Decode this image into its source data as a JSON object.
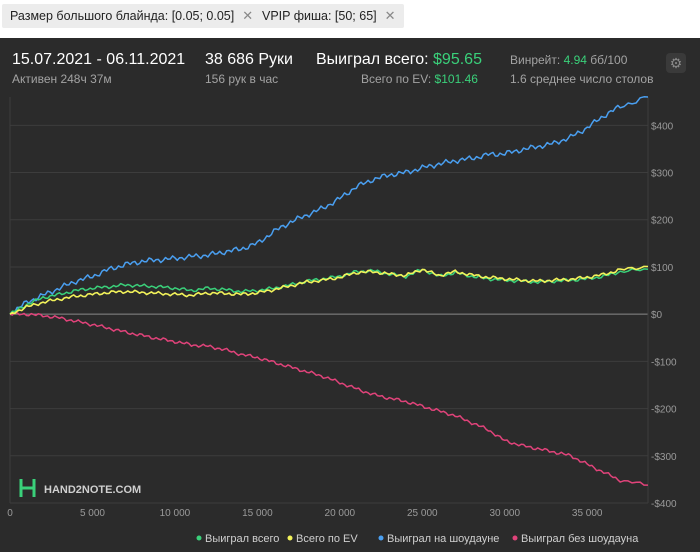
{
  "filters": [
    {
      "label": "Размер большого блайнда: [0.05; 0.05]"
    },
    {
      "label": "VPIP фиша: [50; 65]"
    }
  ],
  "summary": {
    "date_range": "15.07.2021 - 06.11.2021",
    "active": "Активен 248ч 37м",
    "hands": "38 686 Руки",
    "hands_per_hour": "156 рук в час",
    "won_total_label": "Выиграл всего:",
    "won_total_value": "$95.65",
    "ev_total_label": "Всего по EV:",
    "ev_total_value": "$101.46",
    "winrate_label": "Винрейт:",
    "winrate_value": "4.94",
    "winrate_unit": "бб/100",
    "avg_tables": "1.6 среднее число столов"
  },
  "logo": {
    "text": "HAND2NOTE.COM"
  },
  "colors": {
    "won": "#3ad07a",
    "ev": "#f2f25a",
    "showdown": "#4a9ff0",
    "nonshowdown": "#e0437a"
  },
  "chart_data": {
    "type": "line",
    "xlim": [
      0,
      38686
    ],
    "ylim": [
      -400,
      460
    ],
    "x_ticks": [
      0,
      5000,
      10000,
      15000,
      20000,
      25000,
      30000,
      35000
    ],
    "x_tick_labels": [
      "0",
      "5 000",
      "10 000",
      "15 000",
      "20 000",
      "25 000",
      "30 000",
      "35 000"
    ],
    "y_ticks": [
      400,
      300,
      200,
      100,
      0,
      -100,
      -200,
      -300,
      -400
    ],
    "y_tick_labels": [
      "$400",
      "$300",
      "$200",
      "$100",
      "$0",
      "-$100",
      "-$200",
      "-$300",
      "-$400"
    ],
    "grid": true,
    "legend_position": "bottom",
    "series": [
      {
        "name": "Выиграл всего",
        "color_key": "won",
        "x": [
          0,
          1000,
          2000,
          3000,
          4000,
          5000,
          6000,
          7000,
          8000,
          9000,
          10000,
          11000,
          12000,
          13000,
          14000,
          15000,
          16000,
          17000,
          18000,
          19000,
          20000,
          21000,
          22000,
          23000,
          24000,
          25000,
          26000,
          27000,
          28000,
          29000,
          30000,
          31000,
          32000,
          33000,
          34000,
          35000,
          36000,
          37000,
          38686
        ],
        "values": [
          0,
          20,
          35,
          42,
          50,
          55,
          58,
          62,
          60,
          58,
          55,
          50,
          55,
          52,
          48,
          50,
          55,
          62,
          70,
          75,
          80,
          90,
          92,
          85,
          80,
          95,
          80,
          88,
          80,
          75,
          72,
          70,
          68,
          70,
          72,
          75,
          80,
          90,
          95
        ]
      },
      {
        "name": "Всего по EV",
        "color_key": "ev",
        "x": [
          0,
          1000,
          2000,
          3000,
          4000,
          5000,
          6000,
          7000,
          8000,
          9000,
          10000,
          11000,
          12000,
          13000,
          14000,
          15000,
          16000,
          17000,
          18000,
          19000,
          20000,
          21000,
          22000,
          23000,
          24000,
          25000,
          26000,
          27000,
          28000,
          29000,
          30000,
          31000,
          32000,
          33000,
          34000,
          35000,
          36000,
          37000,
          38686
        ],
        "values": [
          0,
          15,
          25,
          32,
          38,
          42,
          46,
          48,
          46,
          44,
          42,
          40,
          45,
          44,
          42,
          45,
          52,
          60,
          68,
          72,
          78,
          88,
          90,
          85,
          82,
          95,
          82,
          90,
          83,
          78,
          75,
          72,
          70,
          72,
          74,
          78,
          84,
          94,
          101
        ]
      },
      {
        "name": "Выиграл на шоудауне",
        "color_key": "showdown",
        "x": [
          0,
          1000,
          2000,
          3000,
          4000,
          5000,
          6000,
          7000,
          8000,
          9000,
          10000,
          11000,
          12000,
          13000,
          14000,
          15000,
          16000,
          17000,
          18000,
          19000,
          20000,
          21000,
          22000,
          23000,
          24000,
          25000,
          26000,
          27000,
          28000,
          29000,
          30000,
          31000,
          32000,
          33000,
          34000,
          35000,
          36000,
          37000,
          38686
        ],
        "values": [
          0,
          25,
          40,
          55,
          70,
          80,
          95,
          105,
          112,
          115,
          118,
          122,
          125,
          132,
          138,
          150,
          175,
          195,
          210,
          225,
          245,
          270,
          285,
          295,
          300,
          310,
          318,
          325,
          330,
          338,
          340,
          348,
          355,
          362,
          375,
          395,
          420,
          440,
          460
        ]
      },
      {
        "name": "Выиграл без шоудауна",
        "color_key": "nonshowdown",
        "x": [
          0,
          1000,
          2000,
          3000,
          4000,
          5000,
          6000,
          7000,
          8000,
          9000,
          10000,
          11000,
          12000,
          13000,
          14000,
          15000,
          16000,
          17000,
          18000,
          19000,
          20000,
          21000,
          22000,
          23000,
          24000,
          25000,
          26000,
          27000,
          28000,
          29000,
          30000,
          31000,
          32000,
          33000,
          34000,
          35000,
          36000,
          37000,
          38686
        ],
        "values": [
          0,
          0,
          -3,
          -8,
          -15,
          -22,
          -30,
          -38,
          -45,
          -52,
          -58,
          -65,
          -68,
          -75,
          -85,
          -92,
          -102,
          -112,
          -122,
          -132,
          -145,
          -158,
          -170,
          -178,
          -185,
          -195,
          -205,
          -215,
          -230,
          -245,
          -268,
          -278,
          -285,
          -292,
          -300,
          -318,
          -335,
          -352,
          -362
        ]
      }
    ]
  }
}
